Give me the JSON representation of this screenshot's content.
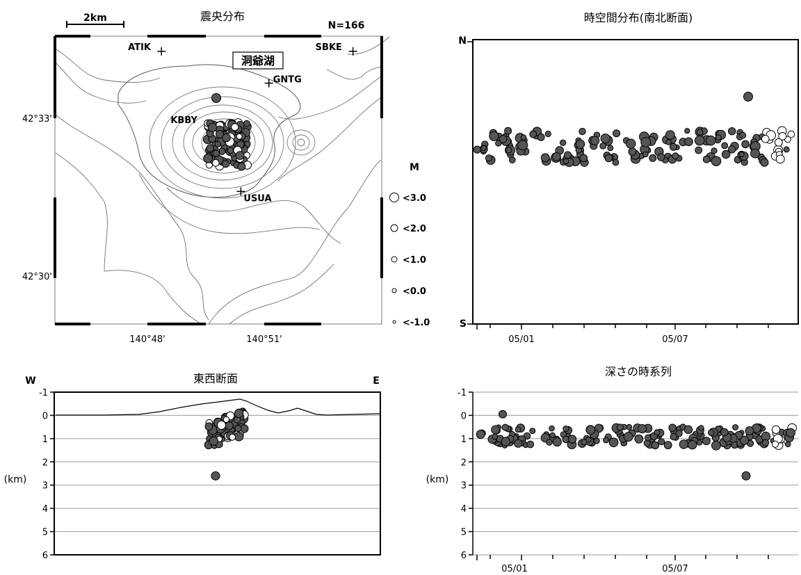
{
  "colors": {
    "quake_fill": "#555555",
    "quake_recent": "#ffffff",
    "contour": "#6e6e6e",
    "grid": "#9a9a9a"
  },
  "chart_data": [
    {
      "type": "scatter",
      "title": "震央分布",
      "count_label": "N=166",
      "scale_label": "2km",
      "lake_label": "洞爺湖",
      "lat_ticks": [
        "42°33'",
        "42°30'"
      ],
      "lon_ticks": [
        "140°48'",
        "140°51'"
      ],
      "lon_tick_values": [
        140.8,
        140.85
      ],
      "lat_tick_values": [
        42.55,
        42.5
      ],
      "stations": [
        {
          "name": "ATIK",
          "lon": 140.806,
          "lat": 42.571
        },
        {
          "name": "GNTG",
          "lon": 140.852,
          "lat": 42.561
        },
        {
          "name": "SBKE",
          "lon": 140.888,
          "lat": 42.571
        },
        {
          "name": "KBBY",
          "lon": 140.826,
          "lat": 42.548
        },
        {
          "name": "USUA",
          "lon": 140.84,
          "lat": 42.527
        }
      ],
      "legend": {
        "title": "M",
        "items": [
          "<3.0",
          "<2.0",
          "<1.0",
          "<0.0",
          "<-1.0"
        ]
      }
    },
    {
      "type": "scatter",
      "title": "時空間分布(南北断面)",
      "y_top_label": "N",
      "y_bottom_label": "S",
      "x_ticks": [
        "05/01",
        "05/07"
      ]
    },
    {
      "type": "scatter",
      "title": "東西断面",
      "left_label": "W",
      "right_label": "E",
      "ylabel": "(km)",
      "y_ticks": [
        "-1",
        "0",
        "1",
        "2",
        "3",
        "4",
        "5",
        "6"
      ],
      "ylim": [
        6,
        -1
      ]
    },
    {
      "type": "scatter",
      "title": "深さの時系列",
      "ylabel": "(km)",
      "y_ticks": [
        "-1",
        "0",
        "1",
        "2",
        "3",
        "4",
        "5",
        "6"
      ],
      "ylim": [
        6,
        -1
      ],
      "x_ticks": [
        "05/01",
        "05/07"
      ]
    }
  ]
}
